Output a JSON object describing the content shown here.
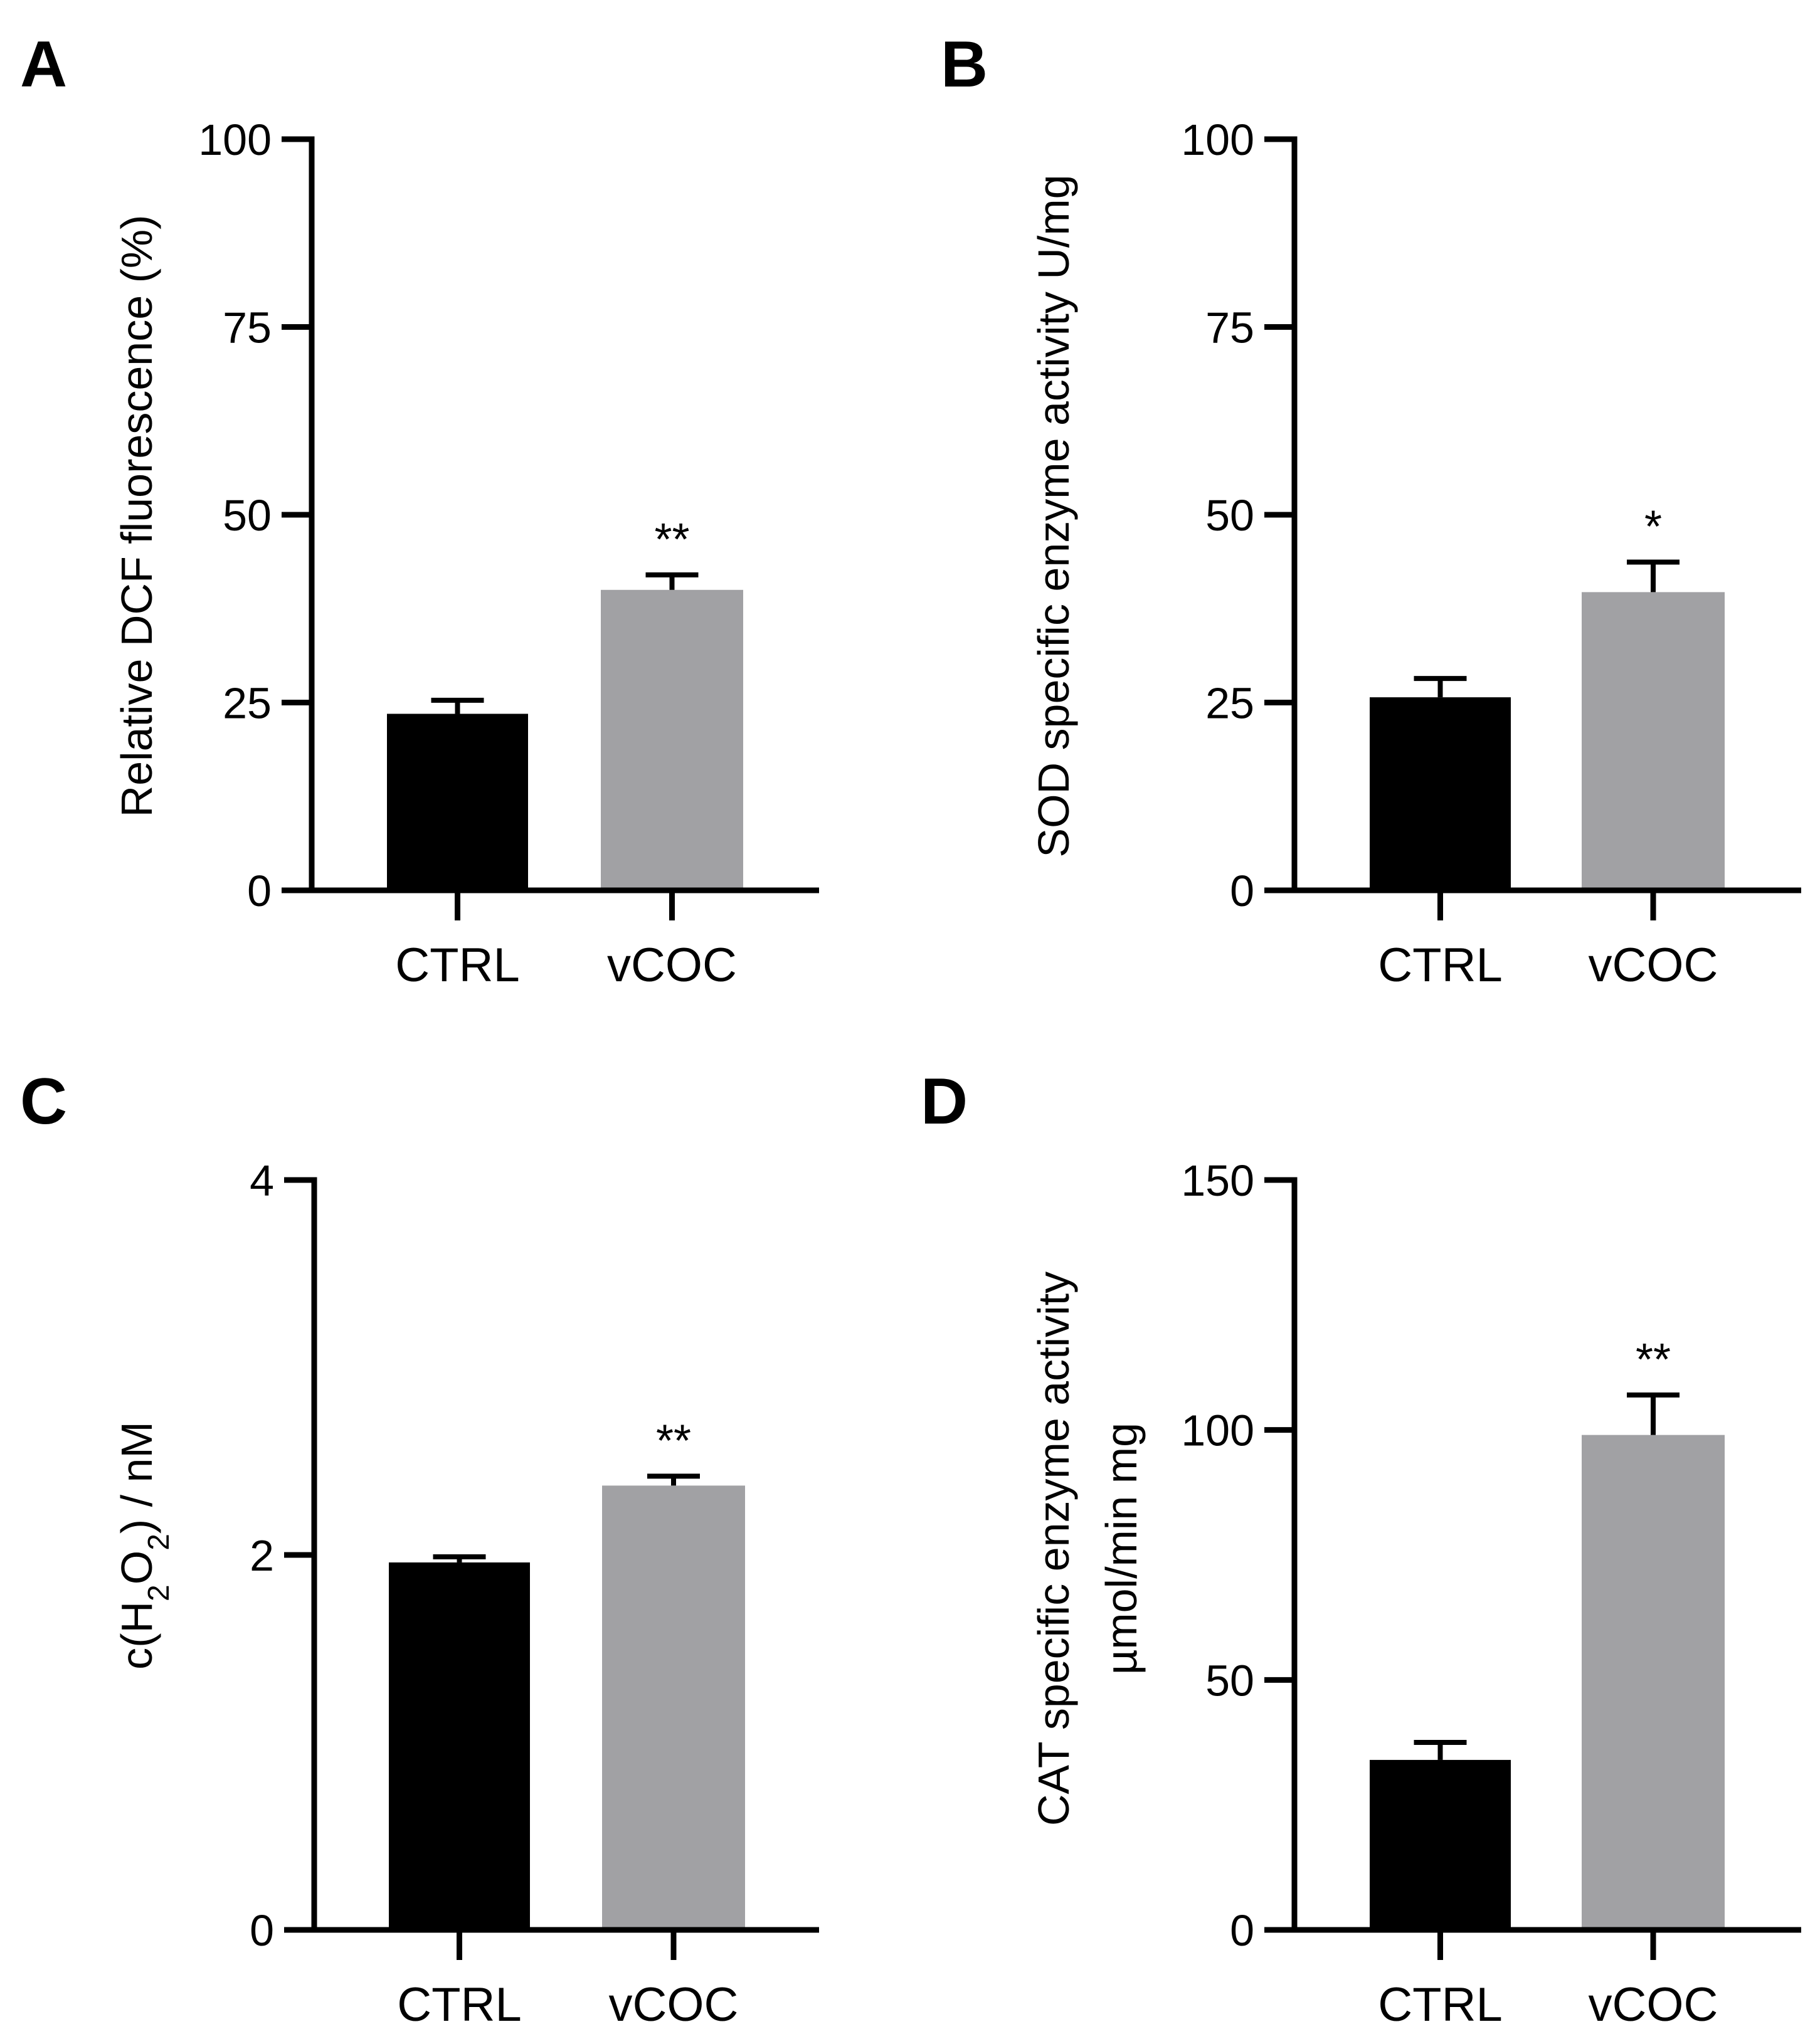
{
  "colors": {
    "ctrl": "#000000",
    "vcoc": "#a1a1a4",
    "axis": "#000000"
  },
  "chart_data": [
    {
      "panel": "A",
      "type": "bar",
      "categories": [
        "CTRL",
        "vCOC"
      ],
      "values": [
        23.5,
        40
      ],
      "errors": [
        1.8,
        2.0
      ],
      "significance": [
        "",
        "**"
      ],
      "ylabel": "Relative DCF fluorescence (%)",
      "ylim": [
        0,
        100
      ],
      "ticks": [
        0,
        25,
        50,
        75,
        100
      ]
    },
    {
      "panel": "B",
      "type": "bar",
      "categories": [
        "CTRL",
        "vCOC"
      ],
      "values": [
        25.7,
        39.7
      ],
      "errors": [
        2.5,
        4.0
      ],
      "significance": [
        "",
        "*"
      ],
      "ylabel": "SOD specific enzyme activity U/mg",
      "ylim": [
        0,
        100
      ],
      "ticks": [
        0,
        25,
        50,
        75,
        100
      ]
    },
    {
      "panel": "C",
      "type": "bar",
      "categories": [
        "CTRL",
        "vCOC"
      ],
      "values": [
        1.96,
        2.37
      ],
      "errors": [
        0.03,
        0.05
      ],
      "significance": [
        "",
        "**"
      ],
      "ylabel": "c(H2O2) / nM",
      "ylabel_parts": {
        "pre": "c(H",
        "sub1": "2",
        "mid": "O",
        "sub2": "2",
        "post": ") / nM"
      },
      "ylim": [
        0,
        4
      ],
      "ticks": [
        0,
        2,
        4
      ]
    },
    {
      "panel": "D",
      "type": "bar",
      "categories": [
        "CTRL",
        "vCOC"
      ],
      "values": [
        34,
        99
      ],
      "errors": [
        3.5,
        8.0
      ],
      "significance": [
        "",
        "**"
      ],
      "ylabel": "CAT specific enzyme activity",
      "ylabel2": "µmol/min mg",
      "ylim": [
        0,
        150
      ],
      "ticks": [
        0,
        50,
        100,
        150
      ]
    }
  ]
}
